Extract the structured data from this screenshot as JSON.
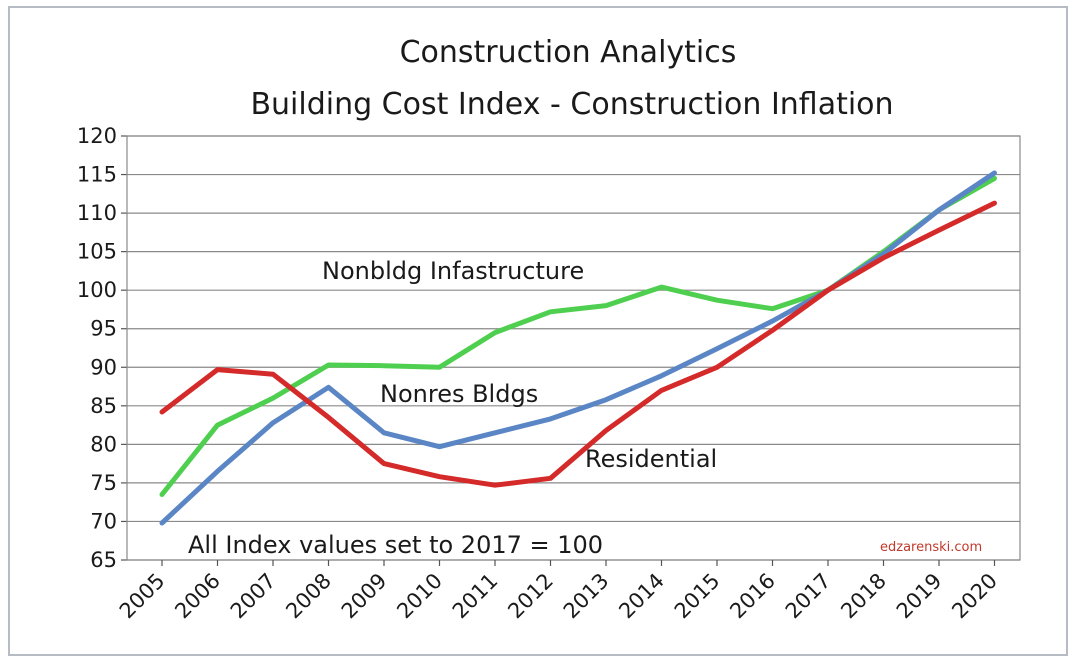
{
  "chart_data": {
    "type": "line",
    "title": "Construction Analytics",
    "subtitle": "Building Cost Index  - Construction Inflation",
    "x": [
      "2005",
      "2006",
      "2007",
      "2008",
      "2009",
      "2010",
      "2011",
      "2012",
      "2013",
      "2014",
      "2015",
      "2016",
      "2017",
      "2018",
      "2019",
      "2020"
    ],
    "ylim": [
      65,
      120
    ],
    "yticks": [
      65,
      70,
      75,
      80,
      85,
      90,
      95,
      100,
      105,
      110,
      115,
      120
    ],
    "grid": true,
    "series": [
      {
        "name": "Nonbldg Infastructure",
        "color": "#4fcf4f",
        "values": [
          73.5,
          82.5,
          86,
          90.3,
          90.2,
          90,
          94.5,
          97.2,
          98,
          100.4,
          98.7,
          97.6,
          100,
          105,
          110.4,
          114.5
        ]
      },
      {
        "name": "Nonres Bldgs",
        "color": "#5b86c5",
        "values": [
          69.8,
          76.5,
          82.8,
          87.4,
          81.5,
          79.7,
          81.5,
          83.3,
          85.8,
          88.9,
          92.4,
          96,
          100,
          104.7,
          110.4,
          115.2
        ]
      },
      {
        "name": "Residential",
        "color": "#d42a2a",
        "values": [
          84.2,
          89.7,
          89.1,
          83.5,
          77.5,
          75.8,
          74.7,
          75.6,
          81.8,
          87,
          90,
          94.8,
          100,
          104.2,
          107.8,
          111.3
        ]
      }
    ],
    "annotations": {
      "nonbldg": "Nonbldg Infastructure",
      "nonres": "Nonres Bldgs",
      "residential": "Residential",
      "note": "All Index values set to 2017 = 100",
      "credit": "edzarenski.com"
    }
  }
}
